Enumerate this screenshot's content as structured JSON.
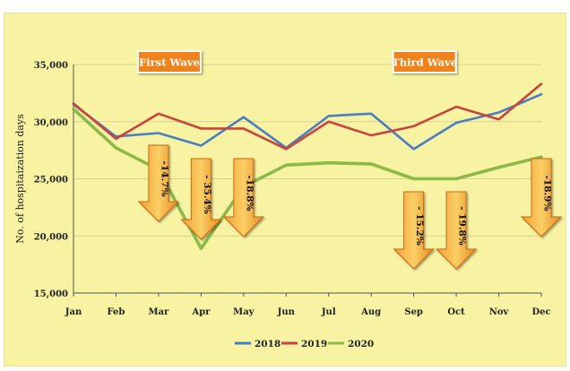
{
  "chart_data": {
    "type": "line",
    "title": "",
    "xlabel": "",
    "ylabel": "No. of hospitaization days",
    "categories": [
      "Jan",
      "Feb",
      "Mar",
      "Apr",
      "May",
      "Jun",
      "Jul",
      "Aug",
      "Sep",
      "Oct",
      "Nov",
      "Dec"
    ],
    "ylim": [
      15000,
      35000
    ],
    "yticks": [
      15000,
      20000,
      25000,
      30000,
      35000
    ],
    "ytick_labels": [
      "15,000",
      "20,000",
      "25,000",
      "30,000",
      "35,000"
    ],
    "grid": true,
    "legend_position": "bottom",
    "background_color": "#f7f3a3",
    "series": [
      {
        "name": "2018",
        "color": "#4a7ec2",
        "values": [
          31500,
          28700,
          29000,
          27900,
          30400,
          27700,
          30500,
          30700,
          27600,
          29900,
          30800,
          32400
        ]
      },
      {
        "name": "2019",
        "color": "#c9443c",
        "values": [
          31600,
          28500,
          30700,
          29400,
          29400,
          27600,
          30000,
          28800,
          29600,
          31300,
          30200,
          33300
        ]
      },
      {
        "name": "2020",
        "color": "#8db84a",
        "values": [
          31100,
          27700,
          25800,
          18900,
          24300,
          26200,
          26400,
          26300,
          25000,
          25000,
          26000,
          26900
        ]
      }
    ],
    "annotations": [
      {
        "type": "label",
        "text": "First Wave",
        "at_category": "Mar"
      },
      {
        "type": "label",
        "text": "Third Wave",
        "at_category": "Sep"
      },
      {
        "type": "arrow",
        "text": "-14.7%",
        "at_category": "Mar"
      },
      {
        "type": "arrow",
        "text": "- 35.4%",
        "at_category": "Apr"
      },
      {
        "type": "arrow",
        "text": "-18.8%",
        "at_category": "May"
      },
      {
        "type": "arrow",
        "text": "- 15.2%",
        "at_category": "Sep"
      },
      {
        "type": "arrow",
        "text": "- 19.8%",
        "at_category": "Oct"
      },
      {
        "type": "arrow",
        "text": "-18.9%",
        "at_category": "Dec"
      }
    ]
  }
}
